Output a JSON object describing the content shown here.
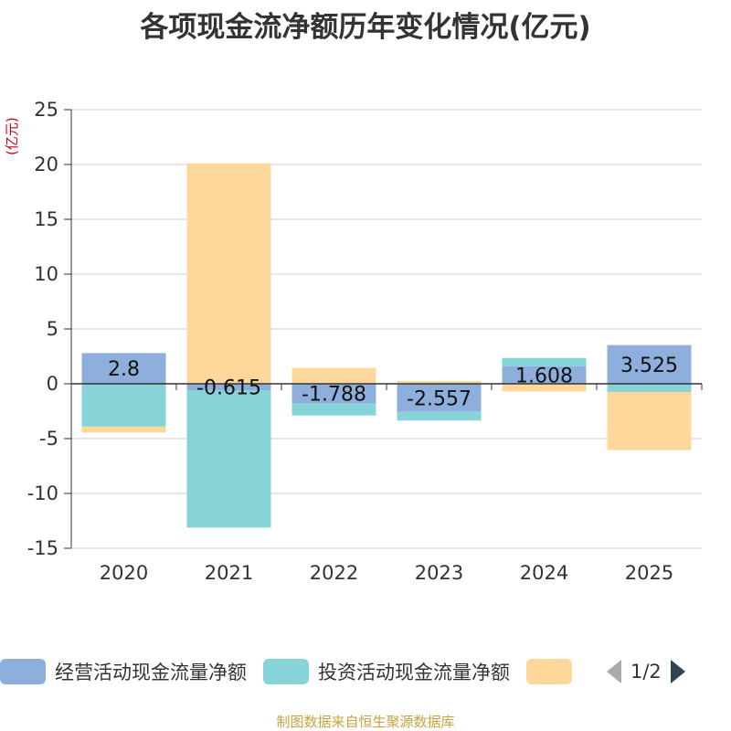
{
  "chart_data": {
    "type": "bar",
    "stacked": true,
    "title": "各项现金流净额历年变化情况(亿元)",
    "ylabel": "(亿元)",
    "xlabel": "",
    "categories": [
      "2020",
      "2021",
      "2022",
      "2023",
      "2024",
      "2025"
    ],
    "ylim": [
      -15,
      25
    ],
    "yticks": [
      25,
      20,
      15,
      10,
      5,
      0,
      -5,
      -10,
      -15
    ],
    "series": [
      {
        "name": "经营活动现金流量净额",
        "color": "#8eafdc",
        "values": [
          2.8,
          -0.615,
          -1.788,
          -2.557,
          1.608,
          3.525
        ],
        "labels": [
          "2.8",
          "-0.615",
          "-1.788",
          "-2.557",
          "1.608",
          "3.525"
        ]
      },
      {
        "name": "投资活动现金流量净额",
        "color": "#86d4d8",
        "values": [
          -3.9,
          -12.5,
          -1.1,
          -0.8,
          0.75,
          -0.75
        ],
        "labels": []
      },
      {
        "name": "",
        "color": "#fdd89a",
        "values": [
          -0.55,
          20.1,
          1.45,
          0.25,
          -0.7,
          -5.3
        ],
        "labels": []
      }
    ],
    "legend_position": "bottom",
    "grid": true
  },
  "legend": {
    "items": [
      {
        "label": "经营活动现金流量净额",
        "color": "#8eafdc"
      },
      {
        "label": "投资活动现金流量净额",
        "color": "#86d4d8"
      },
      {
        "label": "",
        "color": "#fdd89a"
      }
    ],
    "page_indicator": "1/2"
  },
  "source": "制图数据来自恒生聚源数据库"
}
